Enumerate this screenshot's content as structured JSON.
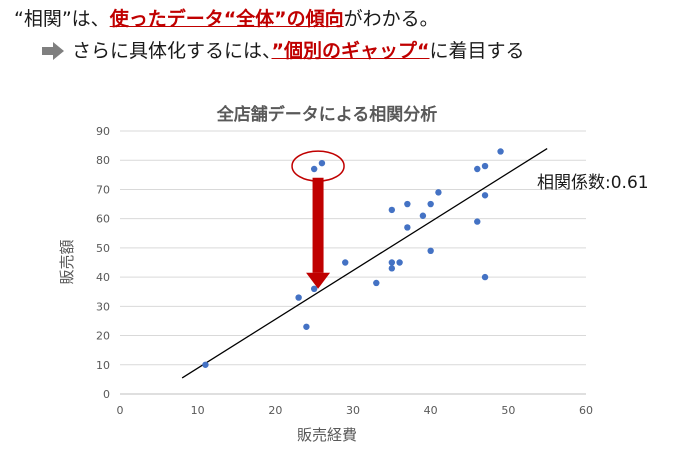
{
  "header": {
    "line1_pre": "“相関”は、",
    "line1_hl": "使ったデータ“全体”の傾向",
    "line1_post": "がわかる。",
    "line2_pre": "さらに具体化するには、",
    "line2_hl": "”個別のギャップ“",
    "line2_post": "に着目する",
    "arrow_icon": "right-arrow-icon"
  },
  "annotation": {
    "correlation_label": "相関係数:0.61"
  },
  "colors": {
    "highlight": "#c00000",
    "points": "#4472c4",
    "trendline": "#000000",
    "arrow": "#c00000"
  },
  "chart_data": {
    "type": "scatter",
    "title": "全店舗データによる相関分析",
    "xlabel": "販売経費",
    "ylabel": "販売額",
    "xlim": [
      0,
      60
    ],
    "ylim": [
      0,
      90
    ],
    "xticks": [
      0,
      10,
      20,
      30,
      40,
      50,
      60
    ],
    "yticks": [
      0,
      10,
      20,
      30,
      40,
      50,
      60,
      70,
      80,
      90
    ],
    "grid": "horizontal",
    "series": [
      {
        "points": [
          [
            11,
            10
          ],
          [
            23,
            33
          ],
          [
            24,
            23
          ],
          [
            25,
            36
          ],
          [
            25,
            77
          ],
          [
            26,
            79
          ],
          [
            29,
            45
          ],
          [
            33,
            38
          ],
          [
            35,
            63
          ],
          [
            35,
            45
          ],
          [
            35,
            43
          ],
          [
            36,
            45
          ],
          [
            37,
            65
          ],
          [
            37,
            57
          ],
          [
            39,
            61
          ],
          [
            40,
            49
          ],
          [
            40,
            65
          ],
          [
            41,
            69
          ],
          [
            46,
            77
          ],
          [
            46,
            59
          ],
          [
            47,
            78
          ],
          [
            47,
            68
          ],
          [
            47,
            40
          ],
          [
            49,
            83
          ]
        ]
      }
    ],
    "trendline": [
      [
        8,
        5.5
      ],
      [
        55,
        84
      ]
    ],
    "highlight": {
      "circle_center": [
        25.5,
        78
      ],
      "arrow_from": [
        25.5,
        74
      ],
      "arrow_to": [
        25.5,
        36
      ]
    }
  }
}
